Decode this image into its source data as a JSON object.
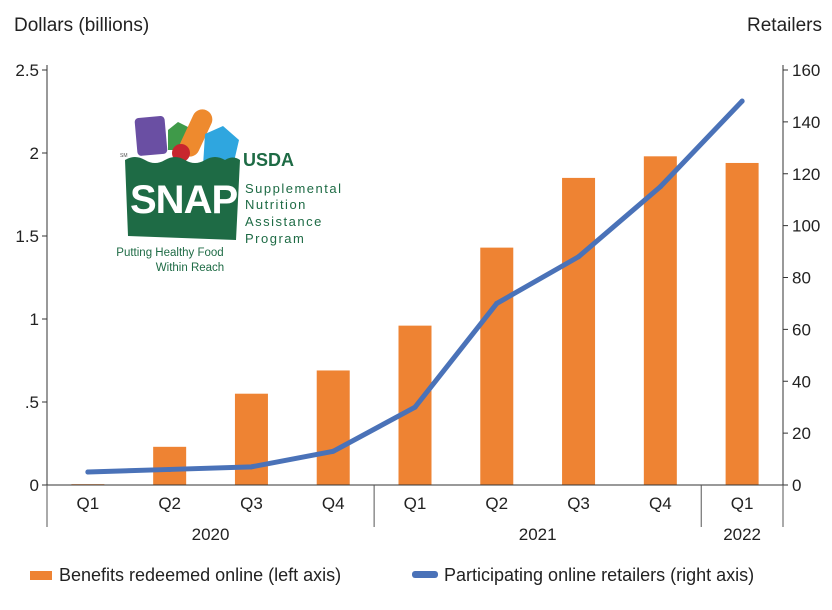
{
  "chart_data": {
    "type": "bar+line",
    "ylabel_left": "Dollars (billions)",
    "ylabel_right": "Retailers",
    "ylim_left": [
      0,
      2.5
    ],
    "ylim_right": [
      0,
      160
    ],
    "yticks_left": [
      "0",
      ".5",
      "1",
      "1.5",
      "2",
      "2.5"
    ],
    "yticks_left_values": [
      0,
      0.5,
      1,
      1.5,
      2,
      2.5
    ],
    "yticks_right": [
      "0",
      "20",
      "40",
      "60",
      "80",
      "100",
      "120",
      "140",
      "160"
    ],
    "yticks_right_values": [
      0,
      20,
      40,
      60,
      80,
      100,
      120,
      140,
      160
    ],
    "categories": [
      "Q1",
      "Q2",
      "Q3",
      "Q4",
      "Q1",
      "Q2",
      "Q3",
      "Q4",
      "Q1"
    ],
    "years": [
      {
        "label": "2020",
        "quarters": 4
      },
      {
        "label": "2021",
        "quarters": 4
      },
      {
        "label": "2022",
        "quarters": 1
      }
    ],
    "grid": false,
    "legend_position": "bottom",
    "series": [
      {
        "name": "Benefits redeemed online (left axis)",
        "type": "bar",
        "axis": "left",
        "color": "#ee8333",
        "values": [
          0.005,
          0.23,
          0.55,
          0.69,
          0.96,
          1.43,
          1.85,
          1.98,
          1.94
        ]
      },
      {
        "name": "Participating online retailers (right axis)",
        "type": "line",
        "axis": "right",
        "color": "#4a72b8",
        "values": [
          5,
          6,
          7,
          13,
          30,
          70,
          88,
          115,
          148
        ]
      }
    ]
  },
  "logo": {
    "sm": "SM",
    "snap": "SNAP",
    "usda": "USDA",
    "tagline1": "Putting Healthy Food",
    "tagline2": "Within Reach",
    "program": [
      "Supplemental",
      "Nutrition",
      "Assistance",
      "Program"
    ],
    "color": "#1e6b45"
  }
}
